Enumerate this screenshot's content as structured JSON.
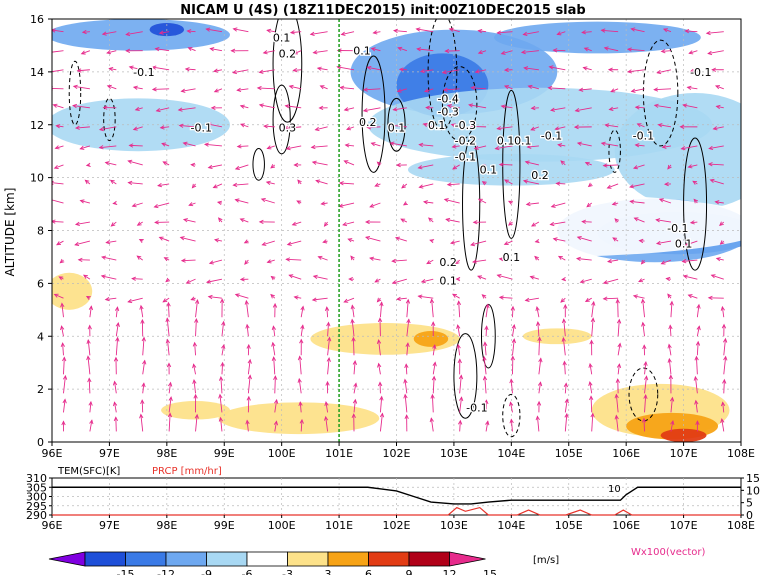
{
  "title": "NICAM U (4S) (18Z11DEC2015) init:00Z10DEC2015 slab",
  "chart_data": [
    {
      "type": "heatmap",
      "panel": "main",
      "ylabel": "ALTITUDE [km]",
      "xlabel": "",
      "x_ticks": [
        "96E",
        "97E",
        "98E",
        "99E",
        "100E",
        "101E",
        "102E",
        "103E",
        "104E",
        "105E",
        "106E",
        "107E",
        "108E"
      ],
      "y_ticks": [
        "0",
        "2",
        "4",
        "6",
        "8",
        "10",
        "12",
        "14",
        "16"
      ],
      "xlim": [
        96,
        108
      ],
      "ylim": [
        0,
        16
      ],
      "grid": true,
      "reference_line_lon": 101,
      "contour_labels": [
        {
          "text": "-0.1",
          "lon": 97.6,
          "alt": 14.0
        },
        {
          "text": "0.1",
          "lon": 100.0,
          "alt": 15.3
        },
        {
          "text": "0.2",
          "lon": 100.1,
          "alt": 14.7
        },
        {
          "text": "-0.1",
          "lon": 98.6,
          "alt": 11.9
        },
        {
          "text": "0.3",
          "lon": 100.1,
          "alt": 11.9
        },
        {
          "text": "0.1",
          "lon": 101.4,
          "alt": 14.8
        },
        {
          "text": "0.2",
          "lon": 101.5,
          "alt": 12.1
        },
        {
          "text": "0.1",
          "lon": 102.0,
          "alt": 11.9
        },
        {
          "text": "-0.4",
          "lon": 102.9,
          "alt": 13.0
        },
        {
          "text": "-0.3",
          "lon": 102.9,
          "alt": 12.5
        },
        {
          "text": "0.1",
          "lon": 102.7,
          "alt": 12.0
        },
        {
          "text": "-0.3",
          "lon": 103.2,
          "alt": 12.0
        },
        {
          "text": "-0.2",
          "lon": 103.2,
          "alt": 11.4
        },
        {
          "text": "-0.1",
          "lon": 103.2,
          "alt": 10.8
        },
        {
          "text": "0.1",
          "lon": 103.6,
          "alt": 10.3
        },
        {
          "text": "0.1",
          "lon": 103.9,
          "alt": 11.4
        },
        {
          "text": "0.1",
          "lon": 104.2,
          "alt": 11.4
        },
        {
          "text": "-0.1",
          "lon": 104.7,
          "alt": 11.6
        },
        {
          "text": "0.2",
          "lon": 104.5,
          "alt": 10.1
        },
        {
          "text": "-0.1",
          "lon": 106.3,
          "alt": 11.6
        },
        {
          "text": "-0.1",
          "lon": 107.3,
          "alt": 14.0
        },
        {
          "text": "-0.1",
          "lon": 106.9,
          "alt": 8.1
        },
        {
          "text": "0.1",
          "lon": 107.0,
          "alt": 7.5
        },
        {
          "text": "0.1",
          "lon": 104.0,
          "alt": 7.0
        },
        {
          "text": "0.2",
          "lon": 102.9,
          "alt": 6.8
        },
        {
          "text": "0.1",
          "lon": 102.9,
          "alt": 6.1
        },
        {
          "text": "-0.1",
          "lon": 103.4,
          "alt": 1.3
        }
      ]
    },
    {
      "type": "line",
      "panel": "surface",
      "x_ticks": [
        "96E",
        "97E",
        "98E",
        "99E",
        "100E",
        "101E",
        "102E",
        "103E",
        "104E",
        "105E",
        "106E",
        "107E",
        "108E"
      ],
      "xlim": [
        96,
        108
      ],
      "series": [
        {
          "name": "TEM(SFC)[K]",
          "color": "#000000",
          "axis": "left",
          "ylim": [
            290,
            310
          ],
          "x": [
            96,
            101.5,
            102,
            102.3,
            102.6,
            103,
            103.3,
            103.6,
            104,
            104.5,
            105,
            105.5,
            105.9,
            106,
            106.2,
            108
          ],
          "y": [
            305,
            305,
            303,
            300,
            297,
            296,
            296,
            297,
            298,
            298,
            298,
            298,
            298,
            301,
            305,
            305
          ]
        },
        {
          "name": "PRCP [mm/hr]",
          "color": "#e8332b",
          "axis": "right",
          "ylim": [
            0,
            15
          ],
          "x": [
            96,
            102.6,
            102.9,
            103.05,
            103.2,
            103.45,
            103.6,
            103.8,
            104.1,
            104.3,
            104.5,
            104.8,
            104.95,
            105.2,
            105.4,
            105.8,
            105.95,
            106.1,
            108
          ],
          "y": [
            0,
            0,
            0,
            3,
            1.5,
            3,
            0,
            0,
            0,
            2,
            0,
            0,
            0,
            2,
            0,
            0,
            2,
            0,
            0
          ]
        }
      ],
      "left_ticks": [
        "290",
        "295",
        "300",
        "305",
        "310"
      ],
      "right_ticks": [
        "0",
        "5",
        "10",
        "15"
      ],
      "annotation": "10"
    },
    {
      "type": "colorbar",
      "ticks": [
        "-15",
        "-12",
        "-9",
        "-6",
        "-3",
        "3",
        "6",
        "9",
        "12",
        "15"
      ],
      "colors": [
        "#8000e0",
        "#1e4fd8",
        "#3a7ae6",
        "#6ea8f0",
        "#a8d8f3",
        "#ffffff",
        "#fde28a",
        "#f7a316",
        "#e23c14",
        "#b00018",
        "#e62b8c"
      ],
      "units": "[m/s]",
      "vector_label": "Wx100(vector)"
    }
  ]
}
